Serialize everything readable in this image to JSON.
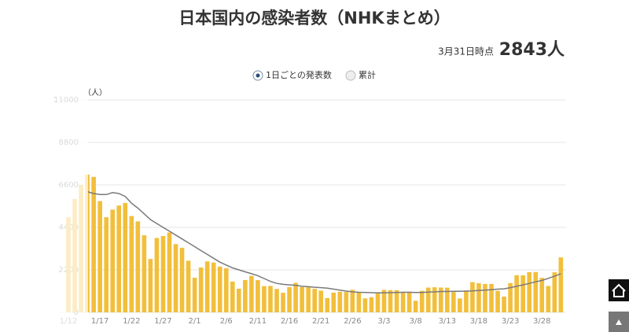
{
  "chart_data": {
    "type": "bar",
    "title": "日本国内の感染者数（NHKまとめ）",
    "as_of": "3月31日時点",
    "total": "2843人",
    "alt_view": "累計",
    "y_label": "（人）",
    "categories": [
      "1/12",
      null,
      null,
      null,
      null,
      "1/17",
      null,
      null,
      null,
      null,
      "1/22",
      null,
      null,
      null,
      null,
      "1/27",
      null,
      null,
      null,
      null,
      "2/1",
      null,
      null,
      null,
      null,
      "2/6",
      null,
      null,
      null,
      null,
      "2/11",
      null,
      null,
      null,
      null,
      "2/16",
      null,
      null,
      null,
      null,
      "2/21",
      null,
      null,
      null,
      null,
      "2/26",
      null,
      null,
      null,
      null,
      "3/3",
      null,
      null,
      null,
      null,
      "3/8",
      null,
      null,
      null,
      null,
      "3/13",
      null,
      null,
      null,
      null,
      "3/18",
      null,
      null,
      null,
      null,
      "3/23",
      null,
      null,
      null,
      null,
      "3/28",
      null,
      null,
      null
    ],
    "series": [
      {
        "name": "1日ごとの発表数",
        "type": "bar",
        "color": "#f2bf3b",
        "values": [
          4925,
          5874,
          6604,
          7133,
          7014,
          5759,
          4925,
          5320,
          5532,
          5662,
          4987,
          4709,
          3990,
          2764,
          3852,
          3951,
          4133,
          3534,
          3342,
          2672,
          1792,
          2323,
          2638,
          2576,
          2368,
          2286,
          1594,
          1224,
          1674,
          1887,
          1669,
          1358,
          1368,
          1212,
          1012,
          1307,
          1528,
          1309,
          1302,
          1217,
          1123,
          740,
          1020,
          1069,
          1053,
          1170,
          1025,
          722,
          785,
          1024,
          1164,
          1150,
          1148,
          1058,
          1065,
          600,
          1117,
          1282,
          1297,
          1283,
          1276,
          1052,
          718,
          1127,
          1564,
          1510,
          1470,
          1471,
          1114,
          816,
          1516,
          1919,
          1915,
          2081,
          2090,
          1785,
          1366,
          2075,
          2843
        ]
      },
      {
        "type": "line",
        "color": "#7a7a7a",
        "values": [
          null,
          null,
          null,
          6250,
          6150,
          6100,
          6100,
          6200,
          6150,
          6000,
          5650,
          5400,
          5100,
          4800,
          4600,
          4400,
          4200,
          4000,
          3800,
          3600,
          3400,
          3200,
          3000,
          2800,
          2600,
          2450,
          2300,
          2200,
          2100,
          2000,
          1900,
          1750,
          1600,
          1500,
          1450,
          1420,
          1400,
          1350,
          1330,
          1300,
          1280,
          1250,
          1200,
          1150,
          1100,
          1060,
          1040,
          1030,
          1020,
          1010,
          1010,
          1020,
          1030,
          1040,
          1040,
          1030,
          1030,
          1050,
          1060,
          1080,
          1080,
          1090,
          1090,
          1100,
          1110,
          1130,
          1150,
          1170,
          1200,
          1220,
          1280,
          1350,
          1420,
          1500,
          1580,
          1650,
          1760,
          1870,
          2000
        ]
      }
    ],
    "ylim": [
      0,
      11000
    ],
    "yticks": [
      0,
      2200,
      4400,
      6600,
      8800,
      11000
    ],
    "grid": true
  }
}
